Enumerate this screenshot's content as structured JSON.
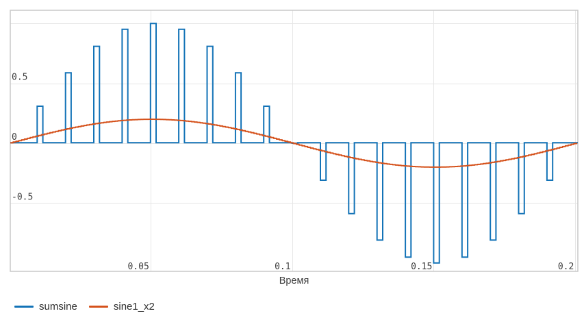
{
  "chart_data": {
    "type": "line",
    "title": "",
    "xlabel": "Время",
    "ylabel": "",
    "x_ticks": [
      "0.05",
      "0.1",
      "0.15",
      "0.2"
    ],
    "x_tick_values": [
      0.05,
      0.1,
      0.15,
      0.2
    ],
    "y_ticks": [
      "0.5",
      "0",
      "-0.5"
    ],
    "y_tick_values": [
      0.5,
      0,
      -0.5
    ],
    "extra_y_gridlines": [
      1.0
    ],
    "x_range": [
      0.0005,
      0.2009
    ],
    "y_range": [
      -1.07,
      1.11
    ],
    "grid": true,
    "legend_position": "bottom-left",
    "colors": {
      "grid": "#e6e6e6",
      "border": "#c9c9c9",
      "tick_text": "#3d3d3d",
      "axis_title_text": "#3d3d3d",
      "legend_text": "#2d2d2d"
    },
    "series": [
      {
        "name": "sumsine",
        "color": "#1373b7",
        "style": "pulse-train",
        "baseline": 0,
        "pulse_width": 0.002,
        "x": [
          0.01,
          0.02,
          0.03,
          0.04,
          0.05,
          0.06,
          0.07,
          0.08,
          0.09,
          0.1,
          0.11,
          0.12,
          0.13,
          0.14,
          0.15,
          0.16,
          0.17,
          0.18,
          0.19
        ],
        "values": [
          0.309,
          0.588,
          0.809,
          0.951,
          1.0,
          0.951,
          0.809,
          0.588,
          0.309,
          0.0,
          -0.309,
          -0.588,
          -0.809,
          -0.951,
          -1.0,
          -0.951,
          -0.809,
          -0.588,
          -0.309
        ]
      },
      {
        "name": "sine1_x2",
        "color": "#d5521c",
        "style": "step-line",
        "amplitude": 0.2,
        "frequency_hz": 5,
        "sample_dt": 0.001
      }
    ]
  }
}
